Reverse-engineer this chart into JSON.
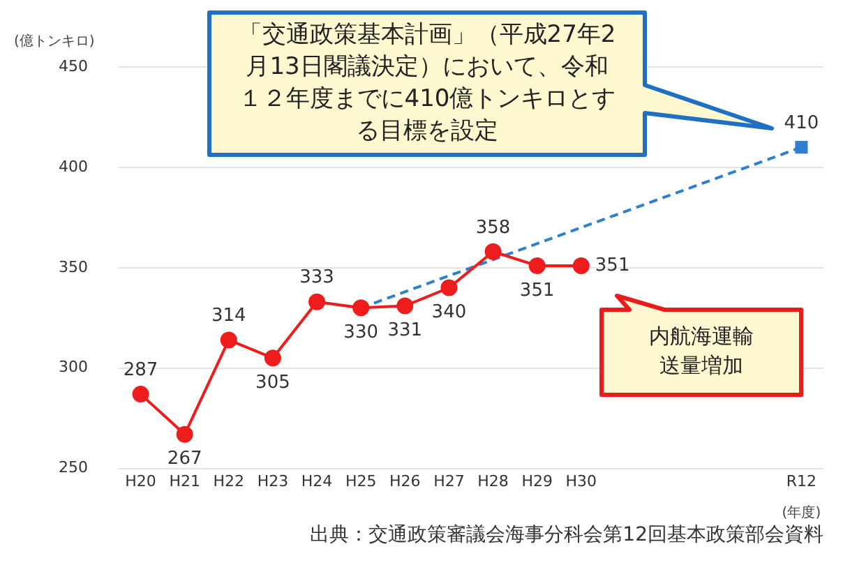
{
  "chart_data": {
    "type": "line",
    "xlabel": "(年度)",
    "ylabel": "(億トンキロ)",
    "categories": [
      "H20",
      "H21",
      "H22",
      "H23",
      "H24",
      "H25",
      "H26",
      "H27",
      "H28",
      "H29",
      "H30",
      null,
      null,
      null,
      null,
      "R12"
    ],
    "series": [
      {
        "color": "#ee1c1c",
        "marker": "circle",
        "line_style": "solid",
        "values": [
          287,
          267,
          314,
          305,
          333,
          330,
          331,
          340,
          358,
          351,
          351,
          null,
          null,
          null,
          null,
          null
        ],
        "value_labels": [
          "287",
          "267",
          "314",
          "305",
          "333",
          "330",
          "331",
          "340",
          "358",
          "351",
          "351",
          null,
          null,
          null,
          null,
          null
        ]
      },
      {
        "color": "#2e7fd0",
        "marker": "square",
        "line_style": "dashed",
        "values": [
          null,
          null,
          null,
          null,
          null,
          330,
          null,
          null,
          null,
          null,
          null,
          null,
          null,
          null,
          null,
          410
        ],
        "value_labels": [
          null,
          null,
          null,
          null,
          null,
          null,
          null,
          null,
          null,
          null,
          null,
          null,
          null,
          null,
          null,
          "410"
        ]
      }
    ],
    "ylim": [
      250,
      450
    ],
    "yticks": [
      250,
      300,
      350,
      400,
      450
    ],
    "grid": "y",
    "legend": false,
    "annotations": [
      "「交通政策基本計画」（平成27年2月13日閣議決定）において、令和１２年度までに410億トンキロとする目標を設定",
      "内航海運輸送量増加",
      "出典：交通政策審議会海事分科会第12回基本政策部会資料"
    ]
  }
}
